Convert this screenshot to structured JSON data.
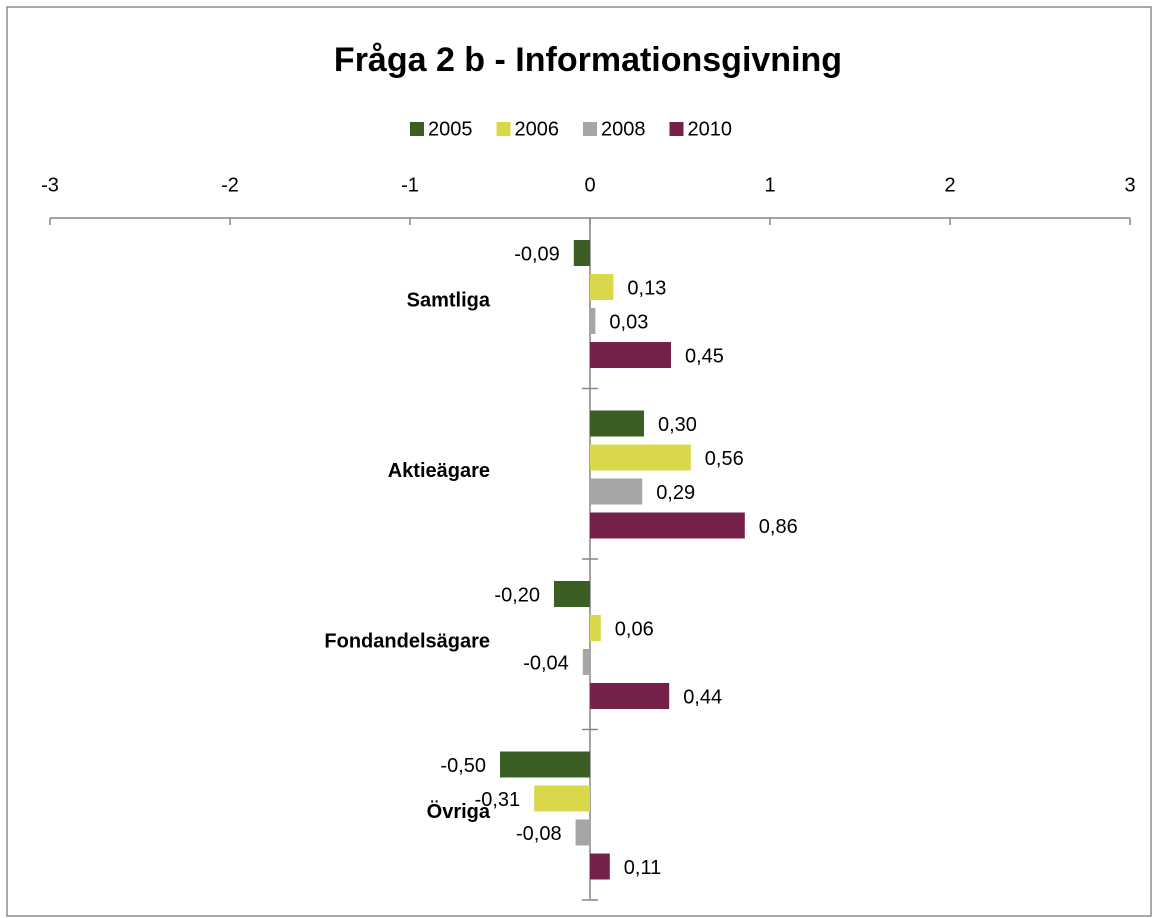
{
  "chart_data": {
    "type": "hbar",
    "title": "Fråga 2 b - Informationsgivning",
    "categories": [
      "Samtliga",
      "Aktieägare",
      "Fondandelsägare",
      "Övriga"
    ],
    "series": [
      {
        "name": "2005",
        "color": "#3b5e25",
        "values": [
          -0.09,
          0.3,
          -0.2,
          -0.5
        ],
        "value_labels": [
          "-0,09",
          "0,30",
          "-0,20",
          "-0,50"
        ]
      },
      {
        "name": "2006",
        "color": "#d9d84b",
        "values": [
          0.13,
          0.56,
          0.06,
          -0.31
        ],
        "value_labels": [
          "0,13",
          "0,56",
          "0,06",
          "-0,31"
        ]
      },
      {
        "name": "2008",
        "color": "#a6a6a6",
        "values": [
          0.03,
          0.29,
          -0.04,
          -0.08
        ],
        "value_labels": [
          "0,03",
          "0,29",
          "-0,04",
          "-0,08"
        ]
      },
      {
        "name": "2010",
        "color": "#75214b",
        "values": [
          0.45,
          0.86,
          0.44,
          0.11
        ],
        "value_labels": [
          "0,45",
          "0,86",
          "0,44",
          "0,11"
        ]
      }
    ],
    "xlim": [
      -3,
      3
    ],
    "xticks": [
      -3,
      -2,
      -1,
      0,
      1,
      2,
      3
    ],
    "legend": "top"
  }
}
